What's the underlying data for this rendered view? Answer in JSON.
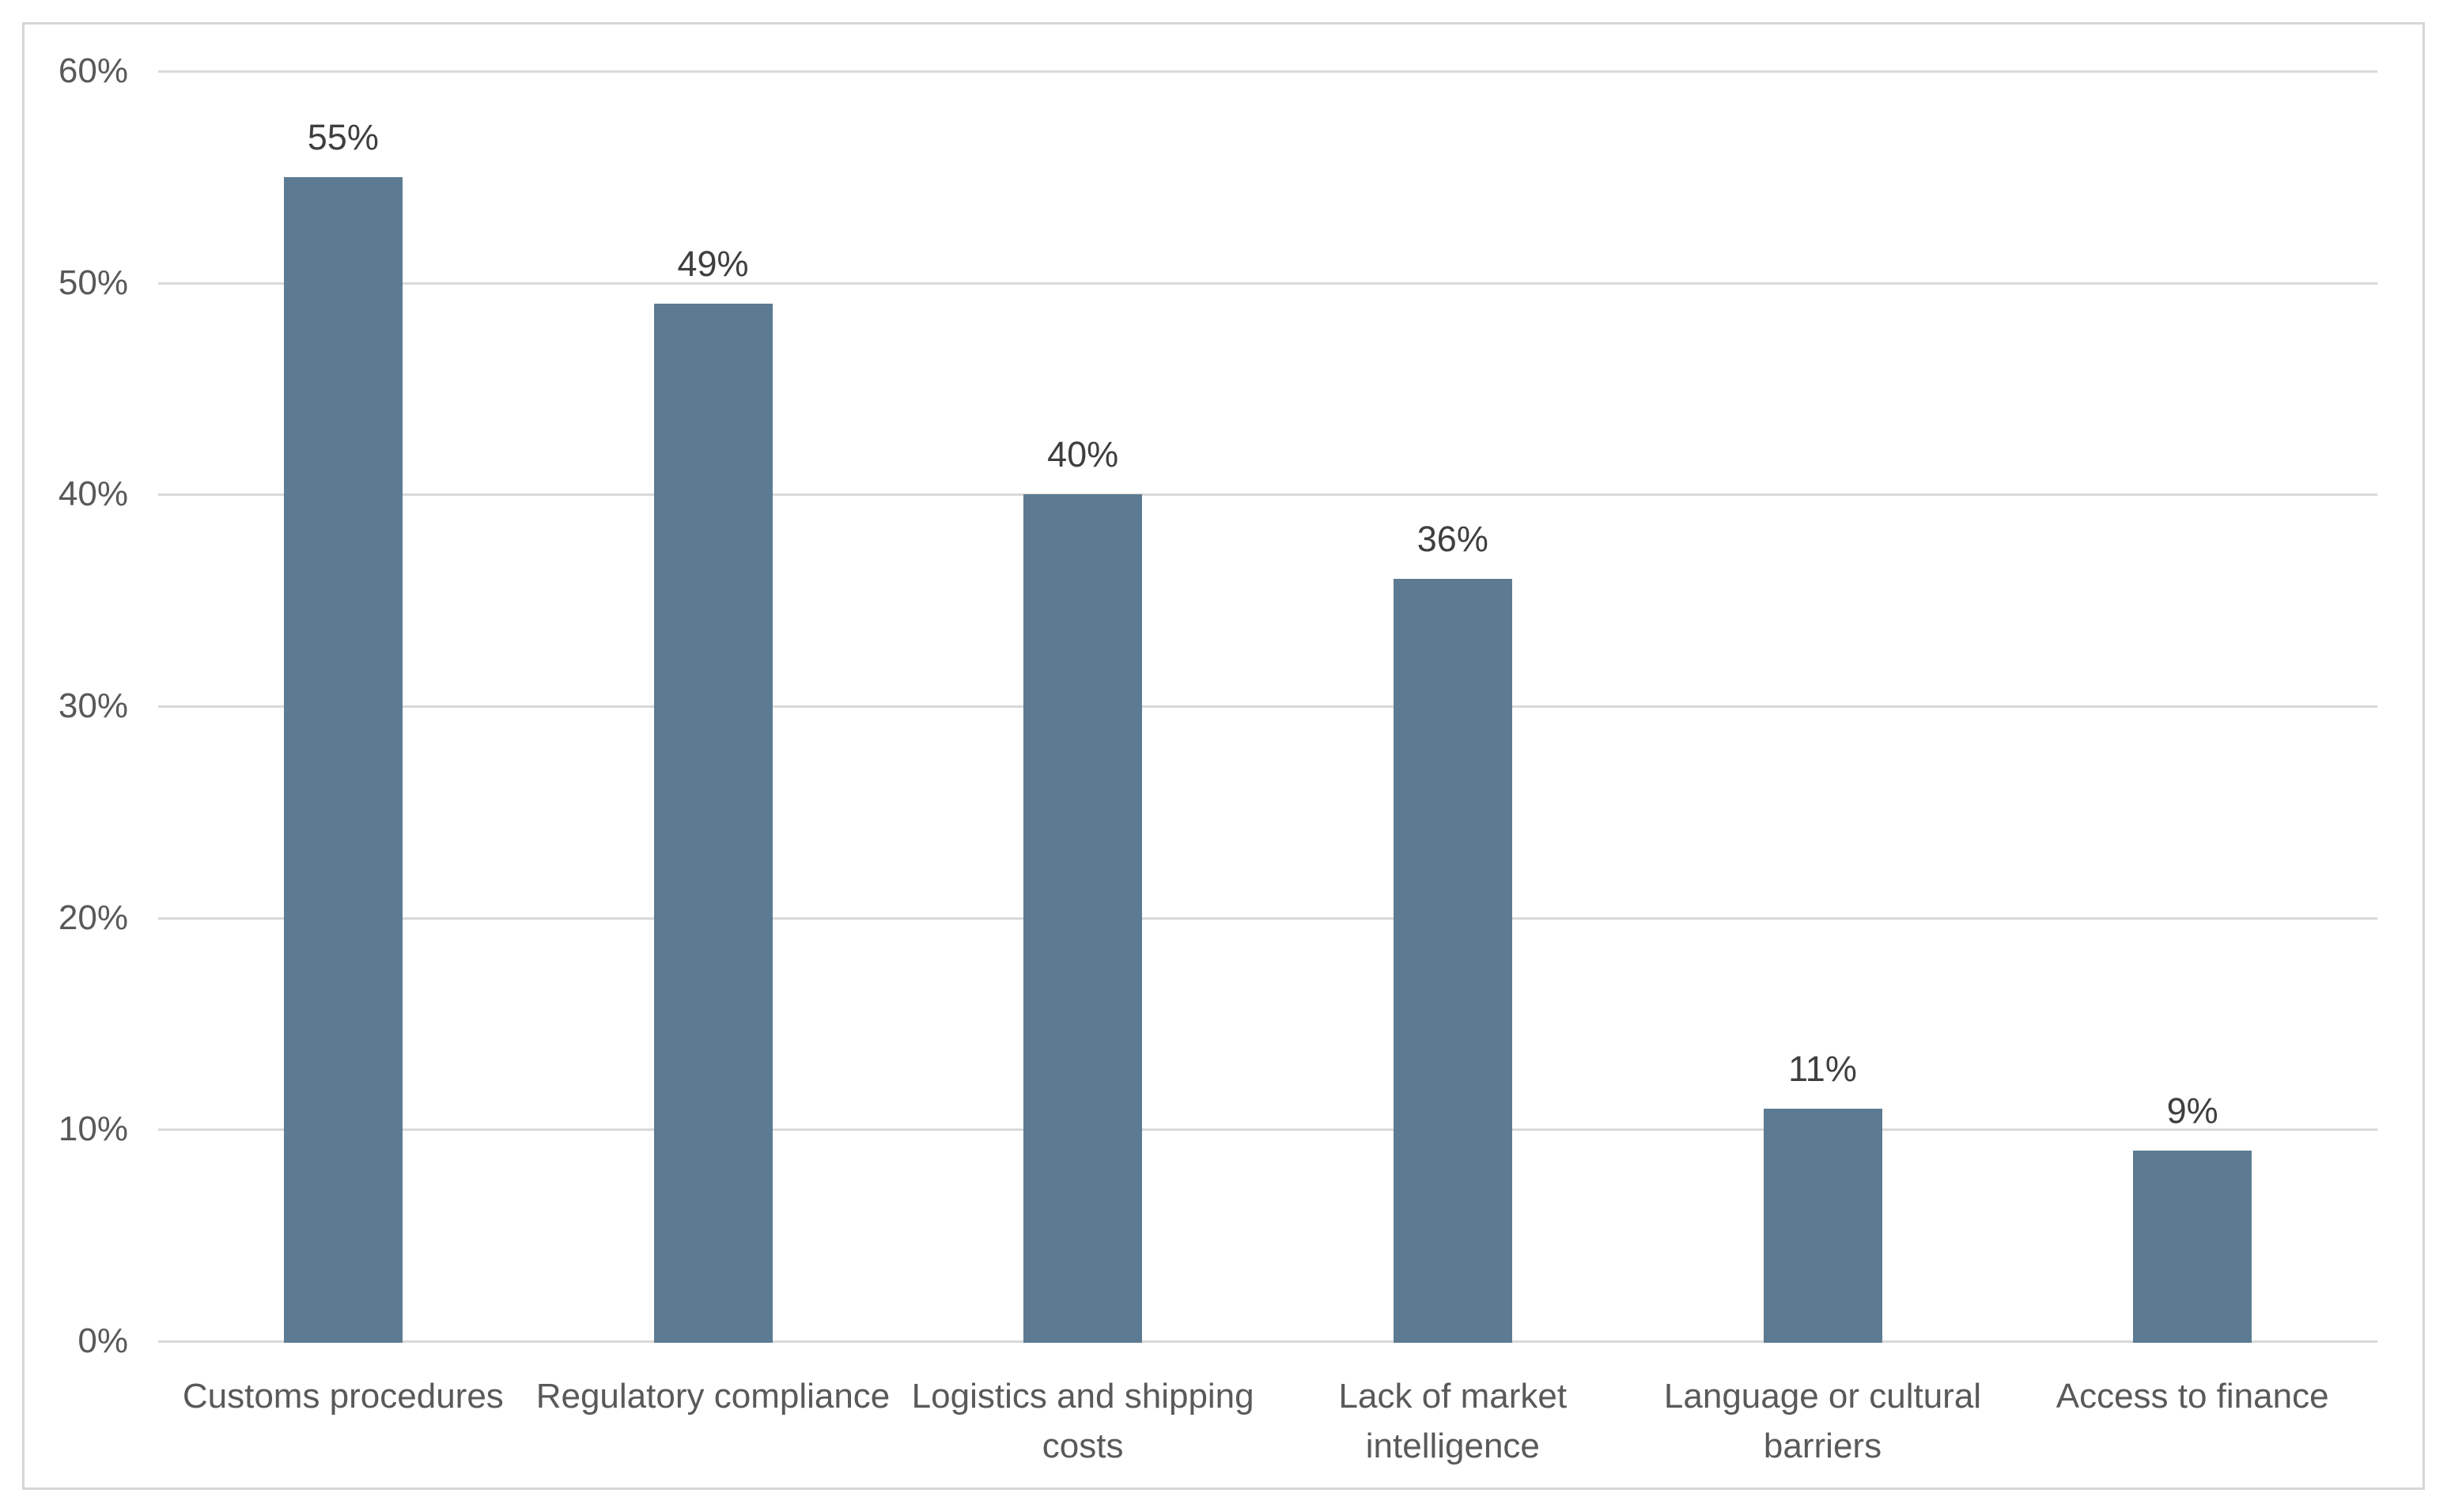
{
  "chart_data": {
    "type": "bar",
    "title": "",
    "xlabel": "",
    "ylabel": "",
    "categories": [
      "Customs procedures",
      "Regulatory compliance",
      "Logistics and shipping costs",
      "Lack of market intelligence",
      "Language or cultural barriers",
      "Access to finance"
    ],
    "values": [
      55,
      49,
      40,
      36,
      11,
      9
    ],
    "data_labels": [
      "55%",
      "49%",
      "40%",
      "36%",
      "11%",
      "9%"
    ],
    "ylim": [
      0,
      60
    ],
    "y_ticks": [
      0,
      10,
      20,
      30,
      40,
      50,
      60
    ],
    "y_tick_labels": [
      "0%",
      "10%",
      "20%",
      "30%",
      "40%",
      "50%",
      "60%"
    ],
    "grid": true,
    "legend": false,
    "colors": {
      "bar": "#5C7B92",
      "gridline": "#D9D9D9",
      "axis_line": "#D9D9D9",
      "tick_label": "#595959",
      "category_label": "#595959",
      "data_label": "#3F3F3F",
      "frame_border": "#D7D7D7",
      "background": "#FFFFFF"
    }
  }
}
